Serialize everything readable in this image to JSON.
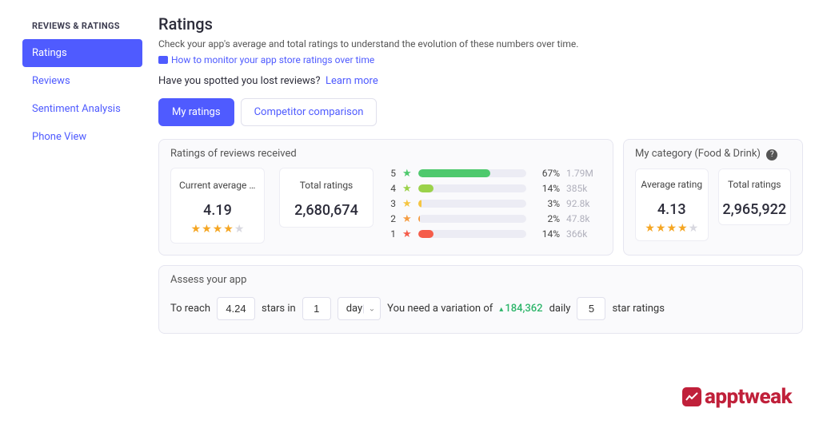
{
  "sidebar": {
    "header": "REVIEWS & RATINGS",
    "items": [
      {
        "label": "Ratings"
      },
      {
        "label": "Reviews"
      },
      {
        "label": "Sentiment Analysis"
      },
      {
        "label": "Phone View"
      }
    ],
    "active_index": 0
  },
  "page": {
    "title": "Ratings",
    "subtitle": "Check your app's average and total ratings to understand the evolution of these numbers over time.",
    "help_link": "How to monitor your app store ratings over time",
    "lost_reviews_text": "Have you spotted you lost reviews?",
    "learn_more": "Learn more"
  },
  "tabs": {
    "items": [
      "My ratings",
      "Competitor comparison"
    ],
    "active_index": 0
  },
  "colors": {
    "primary": "#4f5bff",
    "star_gold": "#f5a623",
    "star_grey": "#d8d8e0",
    "positive": "#2db56a",
    "bar_track": "#ececf4",
    "panel_bg": "#fafafc",
    "brand": "#c0203a"
  },
  "ratings_panel": {
    "header": "Ratings of reviews received",
    "avg_label": "Current average rati...",
    "avg_value": "4.19",
    "avg_stars_filled": 4,
    "total_label": "Total ratings",
    "total_value": "2,680,674",
    "distribution": [
      {
        "label": "5",
        "color": "#4ec96d",
        "star_class": "green",
        "percent": 67,
        "count": "1.79M"
      },
      {
        "label": "4",
        "color": "#9bd24a",
        "star_class": "lime",
        "percent": 14,
        "count": "385k"
      },
      {
        "label": "3",
        "color": "#f5c542",
        "star_class": "yellow",
        "percent": 3,
        "count": "92.8k"
      },
      {
        "label": "2",
        "color": "#f59c42",
        "star_class": "orange",
        "percent": 2,
        "count": "47.8k"
      },
      {
        "label": "1",
        "color": "#f55c4a",
        "star_class": "red",
        "percent": 14,
        "count": "366k"
      }
    ]
  },
  "category_panel": {
    "header": "My category (Food & Drink)",
    "avg_label": "Average rating",
    "avg_value": "4.13",
    "avg_stars_filled": 4,
    "total_label": "Total ratings",
    "total_value": "2,965,922"
  },
  "assess": {
    "header": "Assess your app",
    "prefix": "To reach",
    "target": "4.24",
    "stars_in": "stars in",
    "duration_value": "1",
    "duration_unit": "day",
    "need_text": "You need a variation of",
    "variation": "184,362",
    "daily": "daily",
    "star_target": "5",
    "star_ratings_text": "star ratings"
  },
  "brand": "apptweak"
}
